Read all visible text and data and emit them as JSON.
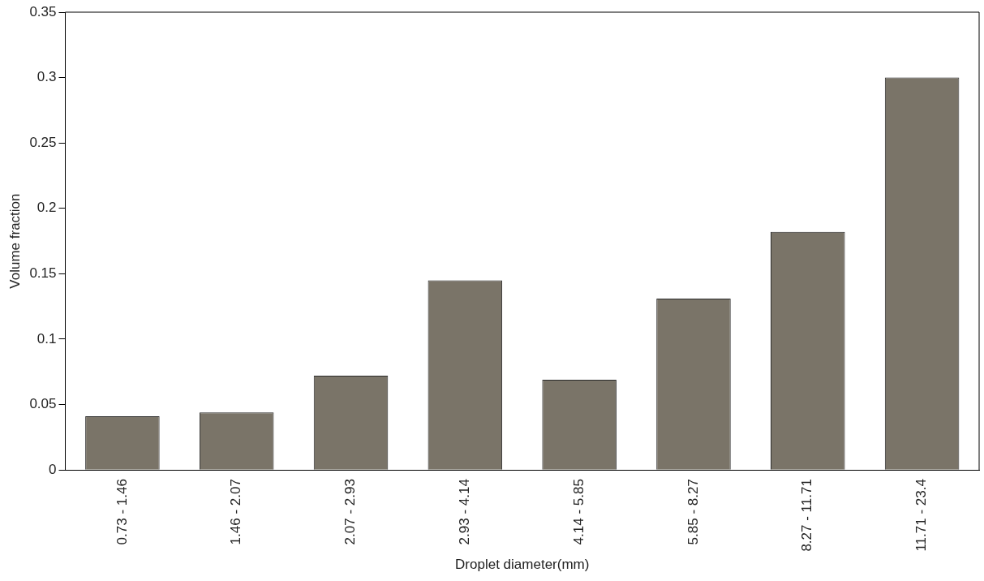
{
  "chart_data": {
    "type": "bar",
    "xlabel": "Droplet diameter(mm)",
    "ylabel": "Volume fraction",
    "categories": [
      "0.73 - 1.46",
      "1.46 - 2.07",
      "2.07 - 2.93",
      "2.93 - 4.14",
      "4.14 - 5.85",
      "5.85 - 8.27",
      "8.27 - 11.71",
      "11.71 - 23.4"
    ],
    "values": [
      0.041,
      0.044,
      0.072,
      0.145,
      0.069,
      0.131,
      0.182,
      0.3
    ],
    "color": "#7a7468",
    "ylim": [
      0,
      0.35
    ],
    "yticks": [
      0,
      0.05,
      0.1,
      0.15,
      0.2,
      0.25,
      0.3,
      0.35
    ],
    "grid": false,
    "legend": false
  }
}
